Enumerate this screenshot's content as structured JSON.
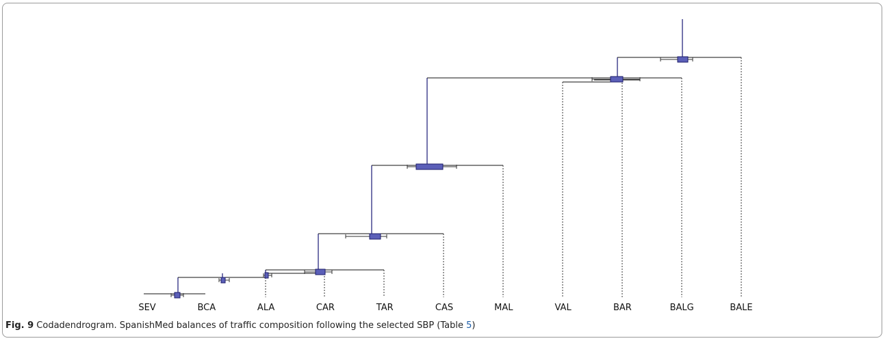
{
  "figure": {
    "leaves": [
      "SEV",
      "BCA",
      "ALA",
      "CAR",
      "TAR",
      "CAS",
      "MAL",
      "VAL",
      "BAR",
      "BALG",
      "BALE"
    ],
    "caption": {
      "label": "Fig. 9",
      "text_before": " Codadendrogram. SpanishMed balances of traffic composition following the selected SBP (Table ",
      "link": "5",
      "text_after": ")"
    }
  }
}
